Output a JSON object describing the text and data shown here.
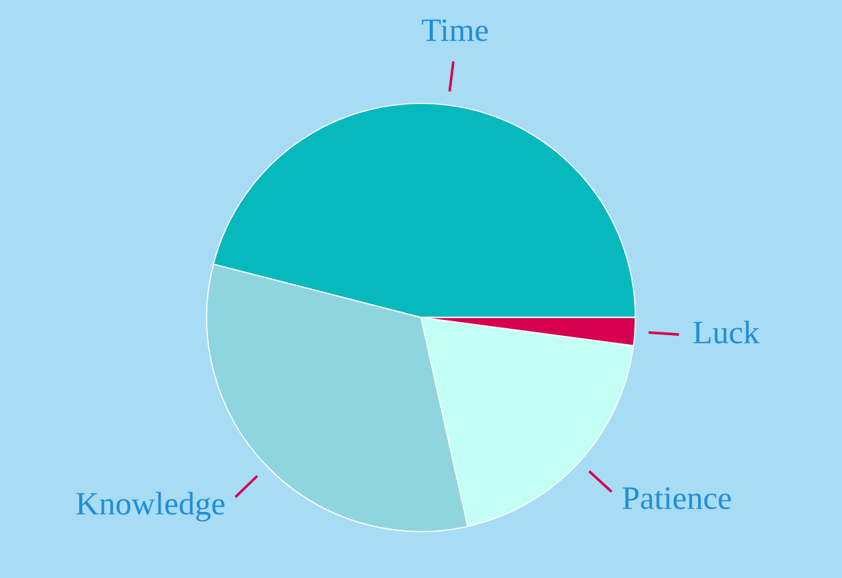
{
  "chart_data": {
    "type": "pie",
    "categories": [
      "Time",
      "Knowledge",
      "Patience",
      "Luck"
    ],
    "values": [
      46,
      32.5,
      19.4,
      2.1
    ],
    "colors": [
      "#05b9bd",
      "#8fd5e0",
      "#c4fff6",
      "#d6004f"
    ],
    "legend": false
  }
}
